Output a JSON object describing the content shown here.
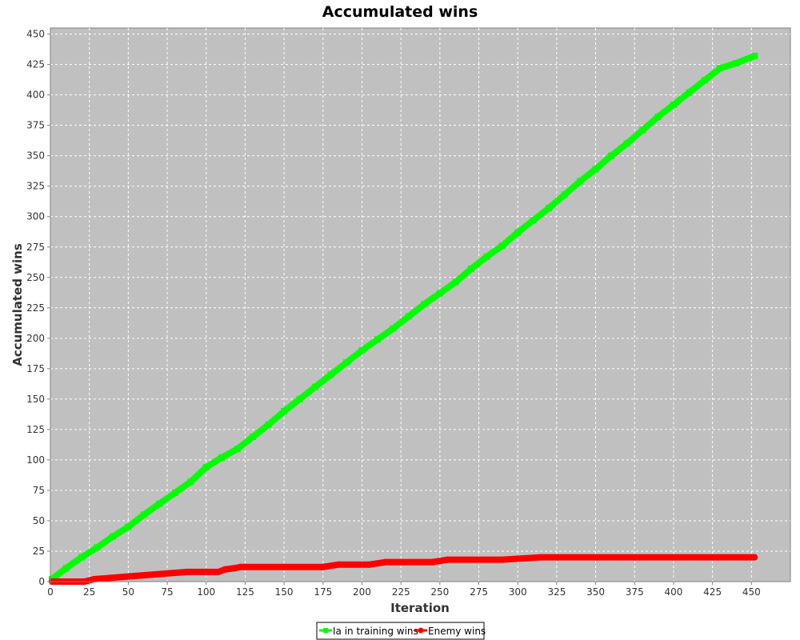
{
  "chart_data": {
    "type": "line",
    "title": "Accumulated wins",
    "xlabel": "Iteration",
    "ylabel": "Accumulated wins",
    "xlim": [
      0,
      475
    ],
    "ylim": [
      0,
      455
    ],
    "x_ticks": [
      "0",
      "25",
      "50",
      "75",
      "100",
      "125",
      "150",
      "175",
      "200",
      "225",
      "250",
      "275",
      "300",
      "325",
      "350",
      "375",
      "400",
      "425",
      "450"
    ],
    "y_ticks": [
      "0",
      "25",
      "50",
      "75",
      "100",
      "125",
      "150",
      "175",
      "200",
      "225",
      "250",
      "275",
      "300",
      "325",
      "350",
      "375",
      "400",
      "425",
      "450"
    ],
    "grid": true,
    "legend_position": "bottom",
    "plot_background": "#c0c0c0",
    "series": [
      {
        "name": "Ia in training wins",
        "color": "#00ff00",
        "marker": "square",
        "x": [
          1,
          10,
          20,
          30,
          40,
          50,
          60,
          70,
          80,
          90,
          100,
          110,
          120,
          130,
          140,
          150,
          160,
          170,
          180,
          190,
          200,
          210,
          220,
          230,
          240,
          250,
          260,
          270,
          280,
          290,
          300,
          310,
          320,
          330,
          340,
          350,
          360,
          370,
          380,
          390,
          400,
          410,
          420,
          430,
          440,
          452
        ],
        "y": [
          2,
          11,
          20,
          28,
          37,
          45,
          55,
          64,
          73,
          82,
          94,
          102,
          109,
          119,
          129,
          140,
          150,
          160,
          170,
          180,
          190,
          199,
          208,
          218,
          228,
          237,
          246,
          257,
          267,
          276,
          287,
          297,
          307,
          318,
          329,
          339,
          350,
          360,
          371,
          382,
          392,
          402,
          412,
          422,
          426,
          432
        ]
      },
      {
        "name": "Enemy wins",
        "color": "#ff0000",
        "marker": "circle",
        "x": [
          1,
          22,
          28,
          38,
          48,
          58,
          68,
          78,
          88,
          108,
          112,
          118,
          122,
          175,
          185,
          205,
          215,
          245,
          255,
          290,
          315,
          452
        ],
        "y": [
          0,
          0,
          2,
          3,
          4,
          5,
          6,
          7,
          8,
          8,
          10,
          11,
          12,
          12,
          14,
          14,
          16,
          16,
          18,
          18,
          20,
          20
        ]
      }
    ]
  }
}
